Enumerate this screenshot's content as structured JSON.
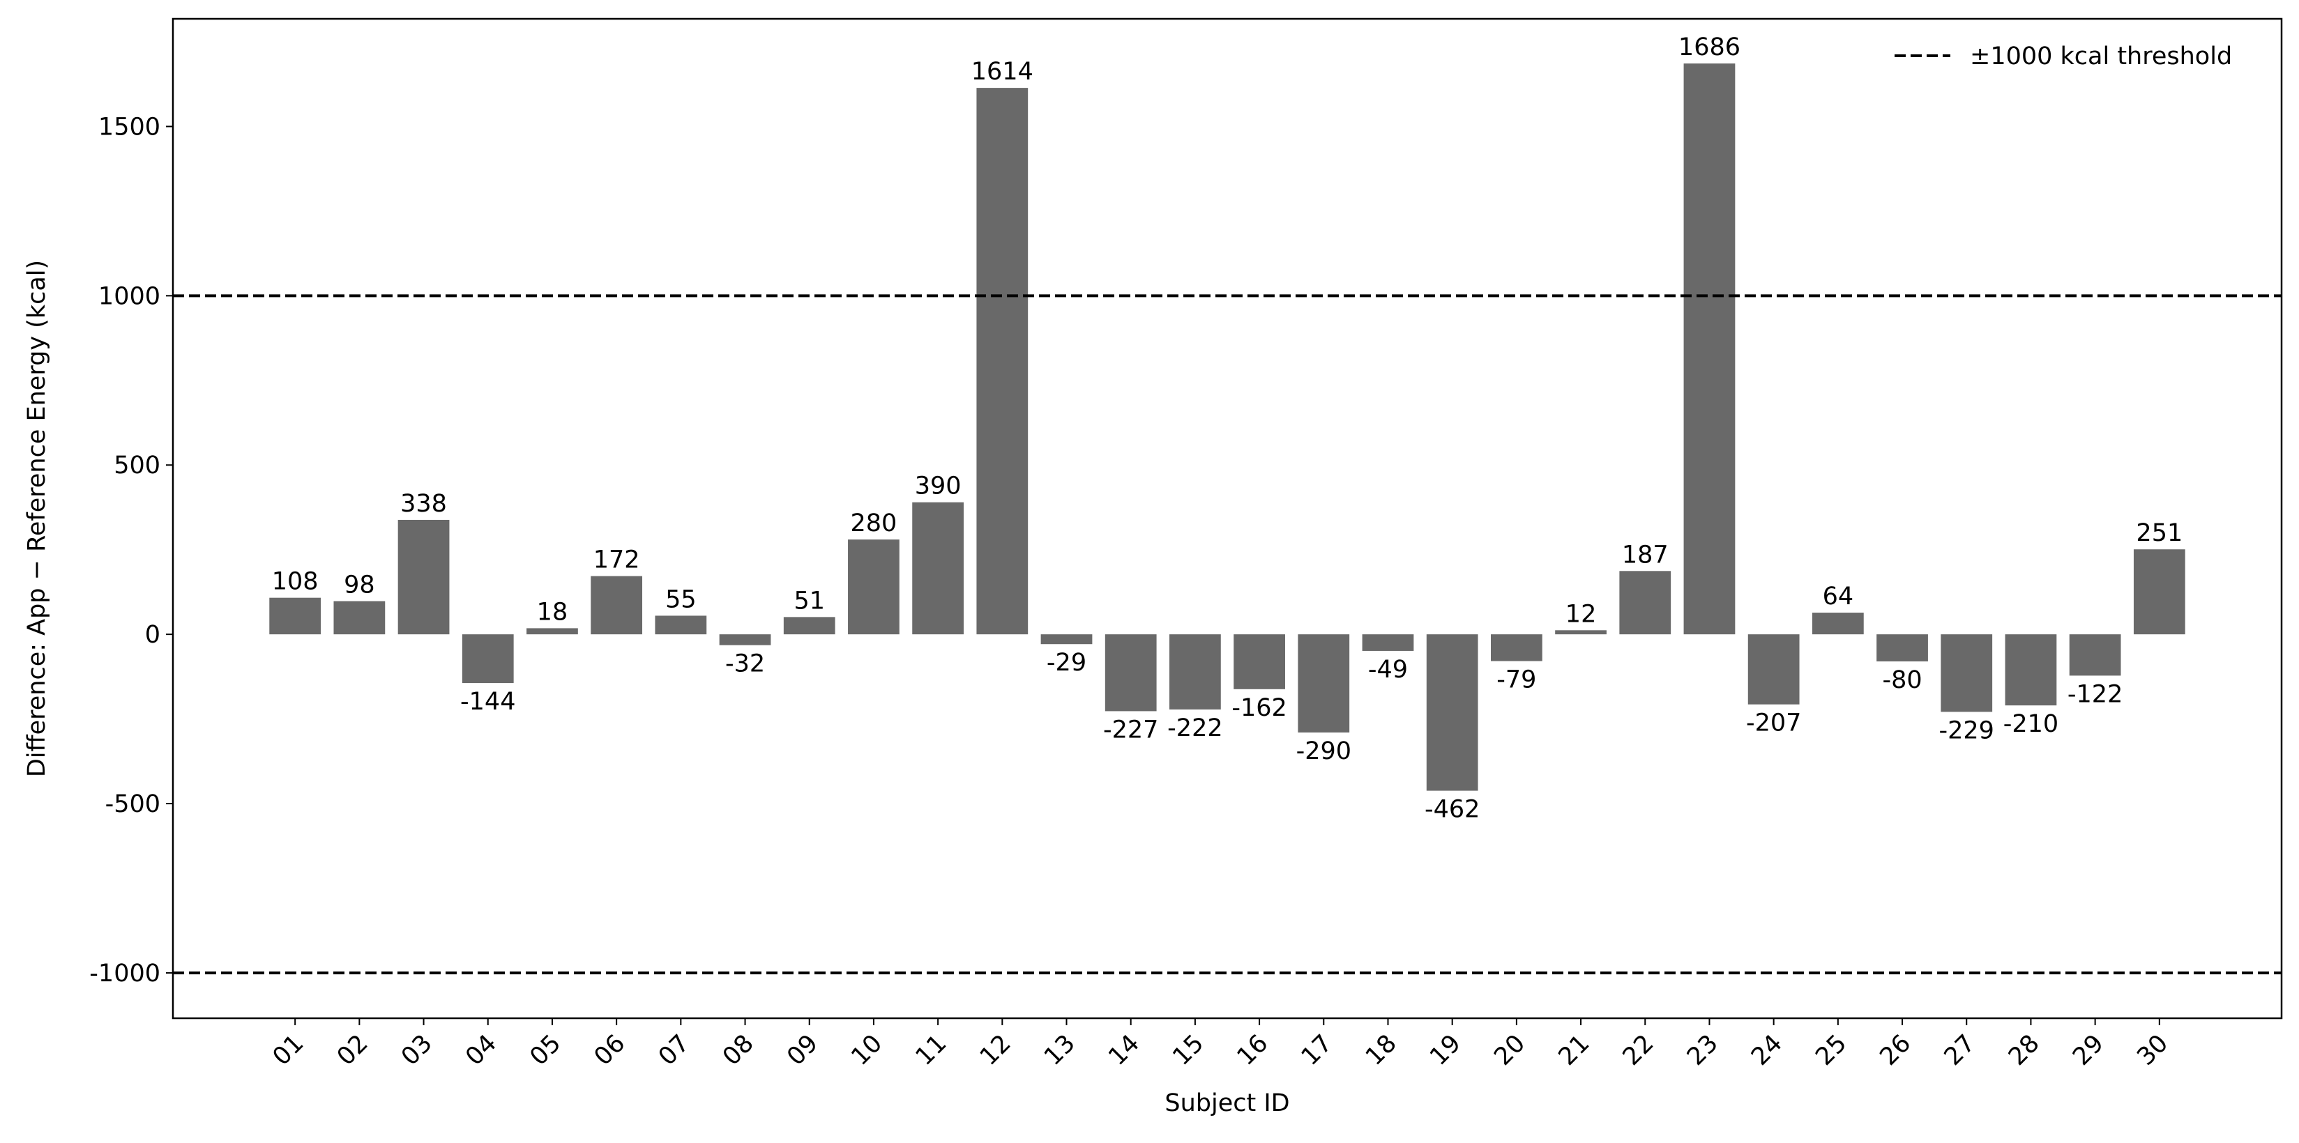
{
  "chart_data": {
    "type": "bar",
    "x_label": "Subject ID",
    "y_label": "Difference: App − Reference Energy (kcal)",
    "categories": [
      "01",
      "02",
      "03",
      "04",
      "05",
      "06",
      "07",
      "08",
      "09",
      "10",
      "11",
      "12",
      "13",
      "14",
      "15",
      "16",
      "17",
      "18",
      "19",
      "20",
      "21",
      "22",
      "23",
      "24",
      "25",
      "26",
      "27",
      "28",
      "29",
      "30"
    ],
    "values": [
      108,
      98,
      338,
      -144,
      18,
      172,
      55,
      -32,
      51,
      280,
      390,
      1614,
      -29,
      -227,
      -222,
      -162,
      -290,
      -49,
      -462,
      -79,
      12,
      187,
      1686,
      -207,
      64,
      -80,
      -229,
      -210,
      -122,
      251
    ],
    "color": "#696969",
    "ylim": [
      -1134,
      1818
    ],
    "yticks": [
      -1000,
      -500,
      0,
      500,
      1000,
      1500
    ],
    "reference_lines": {
      "values": [
        1000,
        -1000
      ],
      "label": "±1000 kcal threshold",
      "color": "#000000",
      "style": "dashed"
    },
    "legend": "upper right",
    "grid": false
  }
}
